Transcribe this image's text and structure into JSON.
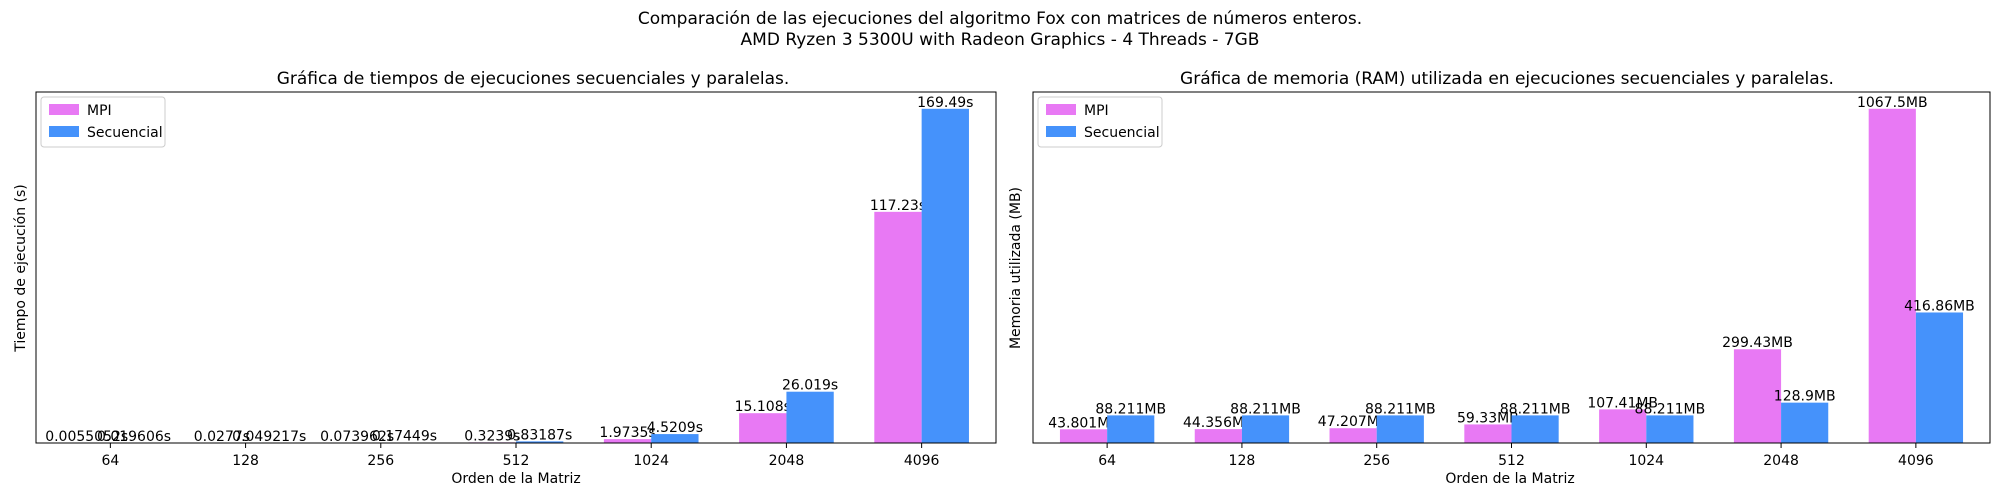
{
  "figure": {
    "suptitle_line1": "Comparación de las ejecuciones del algoritmo Fox con matrices de números enteros.",
    "suptitle_line2": "AMD Ryzen 3 5300U with Radeon Graphics - 4 Threads - 7GB"
  },
  "colors": {
    "mpi": "#e879f4",
    "secuencial": "#4592fb"
  },
  "chart_data": [
    {
      "type": "bar",
      "title": "Gráfica de tiempos de ejecuciones secuenciales y paralelas.",
      "xlabel": "Orden de la Matriz",
      "ylabel": "Tiempo de ejecución (s)",
      "categories": [
        "64",
        "128",
        "256",
        "512",
        "1024",
        "2048",
        "4096"
      ],
      "ylim": [
        0,
        178
      ],
      "y_ticks_shown": false,
      "legend": "top-left",
      "series": [
        {
          "name": "MPI",
          "color": "#e879f4",
          "values": [
            0.00550521,
            0.0277,
            0.07396,
            0.3239,
            1.9735,
            15.108,
            117.23
          ],
          "labels": [
            "0.0055052s",
            "0.0277s",
            "0.073962s",
            "0.3239s",
            "1.9735s",
            "15.108s",
            "117.23s"
          ]
        },
        {
          "name": "Secuencial",
          "color": "#4592fb",
          "values": [
            0.019606,
            0.049217,
            0.17449,
            0.83187,
            4.5209,
            26.019,
            169.49
          ],
          "labels": [
            "0.019606s",
            "0.049217s",
            "0.17449s",
            "0.83187s",
            "4.5209s",
            "26.019s",
            "169.49s"
          ]
        }
      ]
    },
    {
      "type": "bar",
      "title": "Gráfica de memoria (RAM) utilizada en ejecuciones secuenciales y paralelas.",
      "xlabel": "Orden de la Matriz",
      "ylabel": "Memoria utilizada (MB)",
      "categories": [
        "64",
        "128",
        "256",
        "512",
        "1024",
        "2048",
        "4096"
      ],
      "ylim": [
        0,
        1121
      ],
      "y_ticks_shown": false,
      "legend": "top-left",
      "series": [
        {
          "name": "MPI",
          "color": "#e879f4",
          "values": [
            43.801,
            44.356,
            47.207,
            59.33,
            107.41,
            299.43,
            1067.5
          ],
          "labels": [
            "43.801MB",
            "44.356MB",
            "47.207MB",
            "59.33MB",
            "107.41MB",
            "299.43MB",
            "1067.5MB"
          ]
        },
        {
          "name": "Secuencial",
          "color": "#4592fb",
          "values": [
            88.211,
            88.211,
            88.211,
            88.211,
            88.211,
            128.9,
            416.86
          ],
          "labels": [
            "88.211MB",
            "88.211MB",
            "88.211MB",
            "88.211MB",
            "88.211MB",
            "128.9MB",
            "416.86MB"
          ]
        }
      ]
    }
  ]
}
